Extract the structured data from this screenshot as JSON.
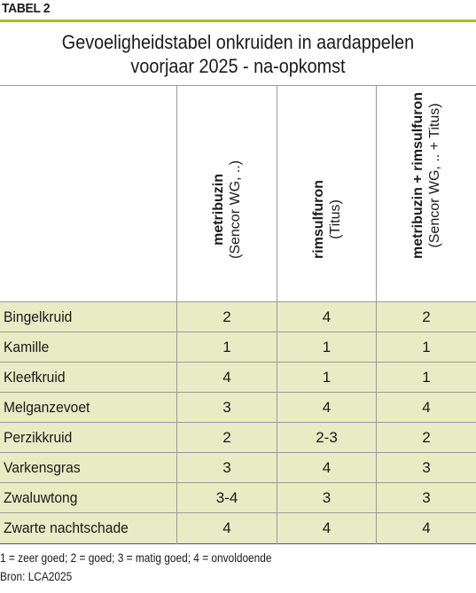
{
  "tag": "TABEL 2",
  "title_line1": "Gevoeligheidstabel onkruiden in aardappelen",
  "title_line2": "voorjaar 2025 - na-opkomst",
  "columns": [
    {
      "main": "metribuzin",
      "sub": "(Sencor WG, ..)"
    },
    {
      "main": "rimsulfuron",
      "sub": "(Titus)"
    },
    {
      "main": "metribuzin + rimsulfuron",
      "sub": "(Sencor WG, .. + Titus)"
    }
  ],
  "rows": [
    {
      "name": "Bingelkruid",
      "values": [
        "2",
        "4",
        "2"
      ]
    },
    {
      "name": "Kamille",
      "values": [
        "1",
        "1",
        "1"
      ]
    },
    {
      "name": "Kleefkruid",
      "values": [
        "4",
        "1",
        "1"
      ]
    },
    {
      "name": "Melganzevoet",
      "values": [
        "3",
        "4",
        "4"
      ]
    },
    {
      "name": "Perzikkruid",
      "values": [
        "2",
        "2-3",
        "2"
      ]
    },
    {
      "name": "Varkensgras",
      "values": [
        "3",
        "4",
        "3"
      ]
    },
    {
      "name": "Zwaluwtong",
      "values": [
        "3-4",
        "3",
        "3"
      ]
    },
    {
      "name": "Zwarte nachtschade",
      "values": [
        "4",
        "4",
        "4"
      ]
    }
  ],
  "footnote": "1 = zeer goed; 2 = goed; 3 = matig goed; 4 = onvoldoende",
  "source": "Bron: LCA2025",
  "colors": {
    "accent": "#a3c21a",
    "row_fill": "#e7ecc4"
  }
}
